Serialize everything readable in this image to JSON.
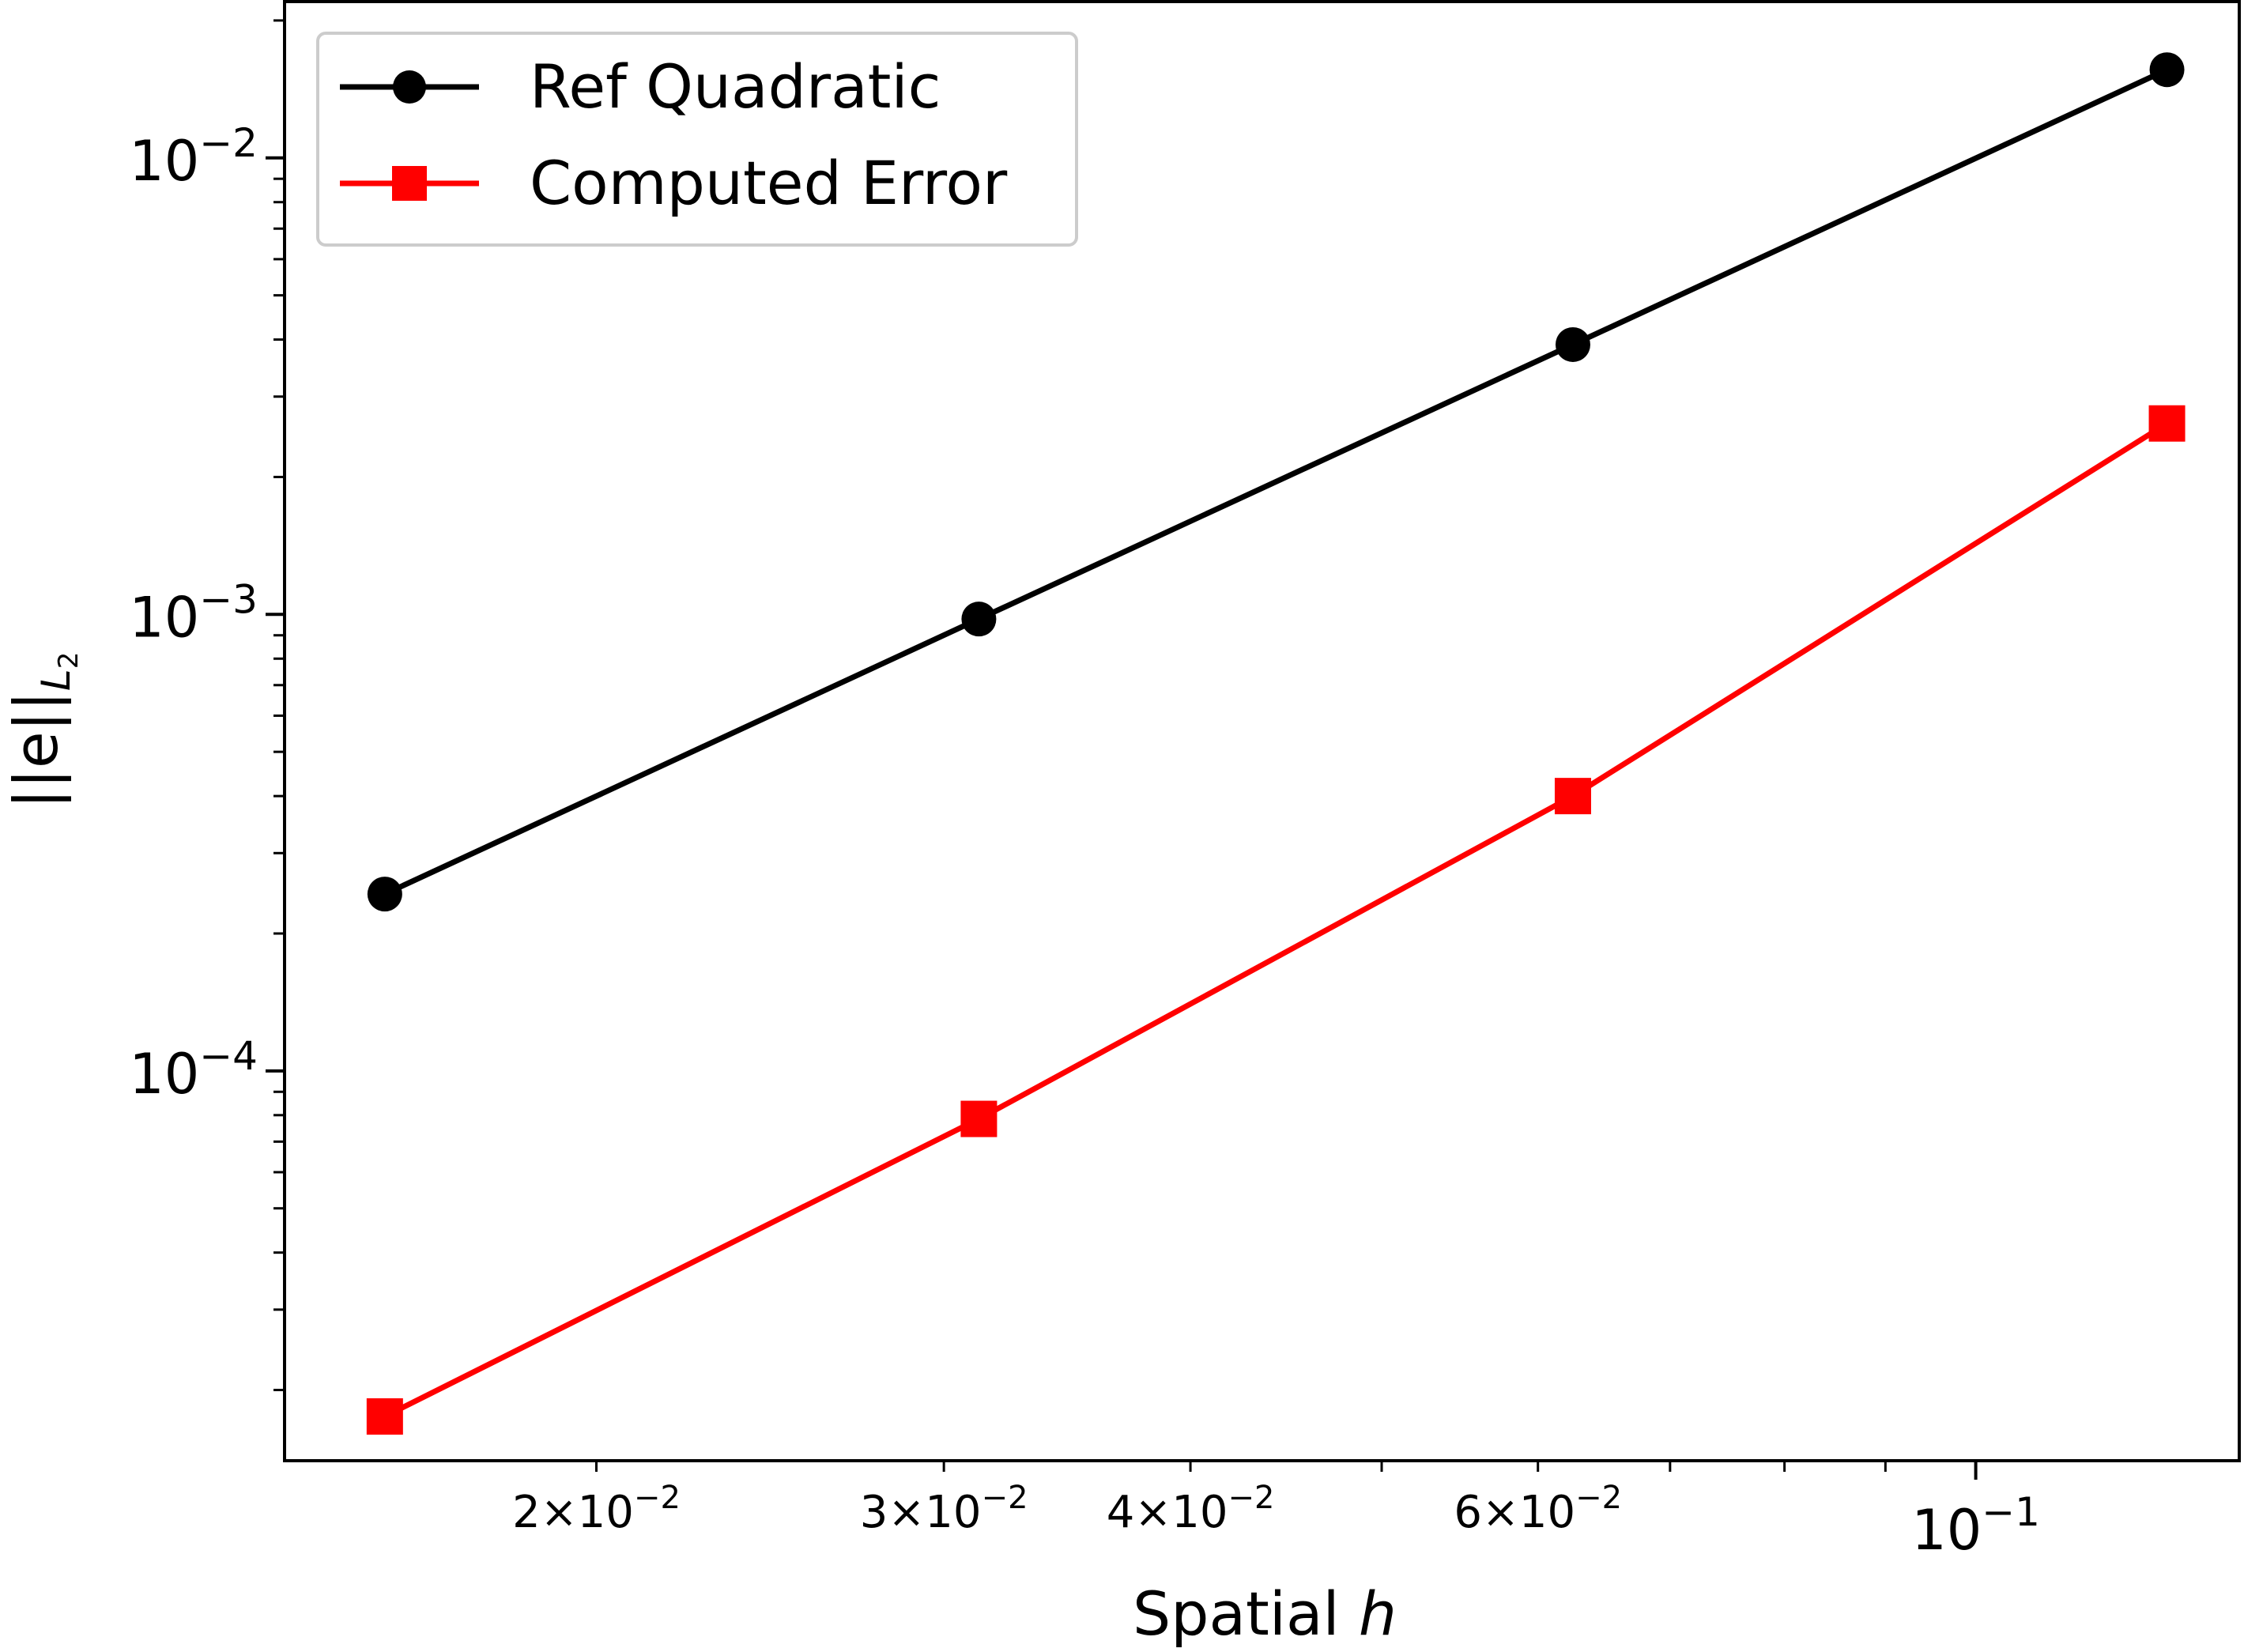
{
  "chart_data": {
    "type": "line",
    "xscale": "log",
    "yscale": "log",
    "xlabel": "Spatial h",
    "xlabel_parts": {
      "text": "Spatial ",
      "italic": "h"
    },
    "ylabel": "||e||L2",
    "ylabel_parts": {
      "base": "||e||",
      "sub": "L",
      "subsub": "2"
    },
    "xlim": [
      0.0139,
      0.136
    ],
    "ylim": [
      1.4e-05,
      0.022
    ],
    "grid": false,
    "legend_position": "top-left",
    "x": [
      0.015625,
      0.03125,
      0.0625,
      0.125
    ],
    "series": [
      {
        "name": "Ref Quadratic",
        "color": "#000000",
        "marker": "circle",
        "values": [
          0.000244,
          0.000977,
          0.0039,
          0.0156
        ]
      },
      {
        "name": "Computed Error",
        "color": "#ff0000",
        "marker": "square",
        "values": [
          1.75e-05,
          7.85e-05,
          0.0004,
          0.00262
        ]
      }
    ],
    "x_major_ticks": [
      {
        "value": 0.1,
        "base": "10",
        "exp": "−1"
      }
    ],
    "x_minor_ticks": [
      {
        "value": 0.02,
        "mant": "2",
        "exp": "−2"
      },
      {
        "value": 0.03,
        "mant": "3",
        "exp": "−2"
      },
      {
        "value": 0.04,
        "mant": "4",
        "exp": "−2"
      },
      {
        "value": 0.06,
        "mant": "6",
        "exp": "−2"
      }
    ],
    "x_minor_unlabeled": [
      0.05,
      0.07,
      0.08,
      0.09
    ],
    "y_major_ticks": [
      {
        "value": 0.0001,
        "base": "10",
        "exp": "−4"
      },
      {
        "value": 0.001,
        "base": "10",
        "exp": "−3"
      },
      {
        "value": 0.01,
        "base": "10",
        "exp": "−2"
      }
    ]
  }
}
